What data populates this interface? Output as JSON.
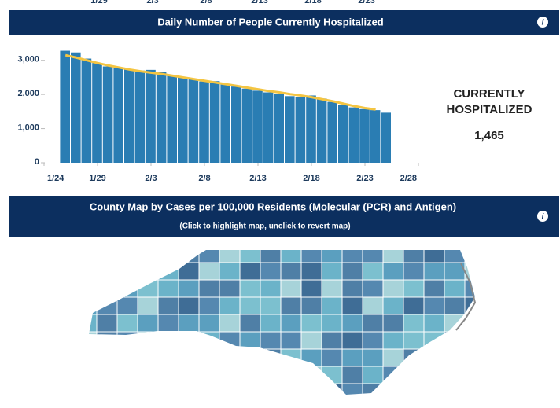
{
  "previous_axis_labels": [
    "1/29",
    "2/3",
    "2/8",
    "2/13",
    "2/18",
    "2/23"
  ],
  "hospital_panel": {
    "title": "Daily Number of People Currently Hospitalized",
    "chart_data": {
      "type": "bar",
      "x": [
        "1/26",
        "1/27",
        "1/28",
        "1/29",
        "1/30",
        "1/31",
        "2/1",
        "2/2",
        "2/3",
        "2/4",
        "2/5",
        "2/6",
        "2/7",
        "2/8",
        "2/9",
        "2/10",
        "2/11",
        "2/12",
        "2/13",
        "2/14",
        "2/15",
        "2/16",
        "2/17",
        "2/18",
        "2/19",
        "2/20",
        "2/21",
        "2/22",
        "2/23",
        "2/24",
        "2/25"
      ],
      "series": [
        {
          "type": "bar",
          "color": "#2a7db3",
          "values": [
            3280,
            3230,
            3050,
            2920,
            2820,
            2780,
            2740,
            2700,
            2720,
            2660,
            2560,
            2500,
            2440,
            2380,
            2390,
            2290,
            2230,
            2170,
            2110,
            2060,
            2020,
            1950,
            1930,
            1970,
            1880,
            1780,
            1700,
            1620,
            1570,
            1540,
            1465
          ]
        },
        {
          "type": "line",
          "color": "#f4c542",
          "values": [
            3150,
            3080,
            3000,
            2920,
            2850,
            2790,
            2730,
            2680,
            2640,
            2600,
            2550,
            2500,
            2450,
            2400,
            2350,
            2300,
            2250,
            2200,
            2150,
            2100,
            2060,
            2010,
            1970,
            1920,
            1860,
            1800,
            1730,
            1660,
            1600,
            1560,
            null
          ]
        }
      ],
      "xlim": [
        "1/24",
        "2/28"
      ],
      "xticks": [
        "1/24",
        "1/29",
        "2/3",
        "2/8",
        "2/13",
        "2/18",
        "2/23",
        "2/28"
      ],
      "ylim": [
        0,
        3500
      ],
      "yticks": [
        0,
        {
          "value": 1000,
          "label": "1,000"
        },
        {
          "value": 2000,
          "label": "2,000"
        },
        {
          "value": 3000,
          "label": "3,000"
        }
      ]
    },
    "kpi": {
      "label_line1": "CURRENTLY",
      "label_line2": "HOSPITALIZED",
      "value": "1,465"
    }
  },
  "map_panel": {
    "title": "County Map by Cases per 100,000 Residents (Molecular (PCR) and Antigen)",
    "subtitle": "(Click to highlight map, unclick to revert map)"
  },
  "info_icon": "i"
}
